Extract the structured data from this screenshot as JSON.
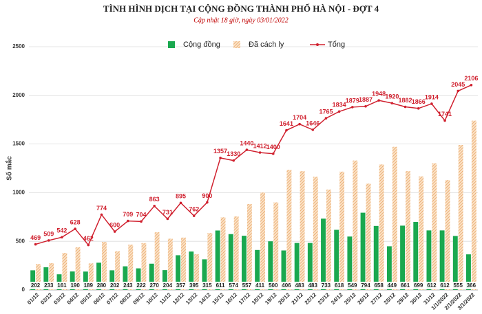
{
  "chart_data": {
    "type": "bar",
    "title": "TÌNH HÌNH DỊCH TẠI CỘNG ĐỒNG THÀNH PHỐ HÀ NỘI - ĐỢT 4",
    "subtitle": "Cập nhật 18 giờ, ngày 03/01/2022",
    "y_label": "Số mắc",
    "categories": [
      "01/12",
      "02/12",
      "03/12",
      "04/12",
      "05/12",
      "06/12",
      "07/12",
      "08/12",
      "09/12",
      "10/12",
      "11/12",
      "12/12",
      "13/12",
      "14/12",
      "15/12",
      "16/12",
      "17/12",
      "18/12",
      "19/12",
      "20/12",
      "21/12",
      "22/12",
      "23/12",
      "24/12",
      "25/12",
      "26/12",
      "27/12",
      "28/12",
      "29/12",
      "30/12",
      "31/12",
      "1/1/2022",
      "2/1/2022",
      "3/1/2022"
    ],
    "series": [
      {
        "name": "Cộng đồng",
        "color": "#1aa84f",
        "type": "bar",
        "values": [
          202,
          233,
          161,
          190,
          189,
          280,
          202,
          243,
          222,
          270,
          204,
          357,
          395,
          315,
          611,
          574,
          557,
          411,
          500,
          406,
          483,
          483,
          733,
          618,
          549,
          794,
          658,
          449,
          661,
          699,
          612,
          612,
          555,
          366
        ]
      },
      {
        "name": "Đã cách ly",
        "color": "#f0b27a",
        "type": "bar",
        "values": [
          267,
          276,
          381,
          438,
          273,
          494,
          398,
          466,
          482,
          593,
          527,
          538,
          367,
          585,
          746,
          756,
          883,
          1001,
          900,
          1235,
          1221,
          1163,
          1032,
          1216,
          1330,
          1093,
          1290,
          1471,
          1221,
          1167,
          1302,
          1129,
          1490,
          1740
        ]
      },
      {
        "name": "Tổng",
        "color": "#d0202e",
        "type": "line",
        "values": [
          469,
          509,
          542,
          628,
          462,
          774,
          600,
          709,
          704,
          863,
          731,
          895,
          762,
          900,
          1357,
          1330,
          1440,
          1412,
          1400,
          1641,
          1704,
          1646,
          1765,
          1834,
          1879,
          1887,
          1948,
          1920,
          1882,
          1866,
          1914,
          1741,
          2045,
          2106
        ]
      }
    ],
    "ylim": [
      0,
      2500
    ],
    "yticks": [
      0,
      500,
      1000,
      1500,
      2000,
      2500
    ],
    "grid": true
  }
}
